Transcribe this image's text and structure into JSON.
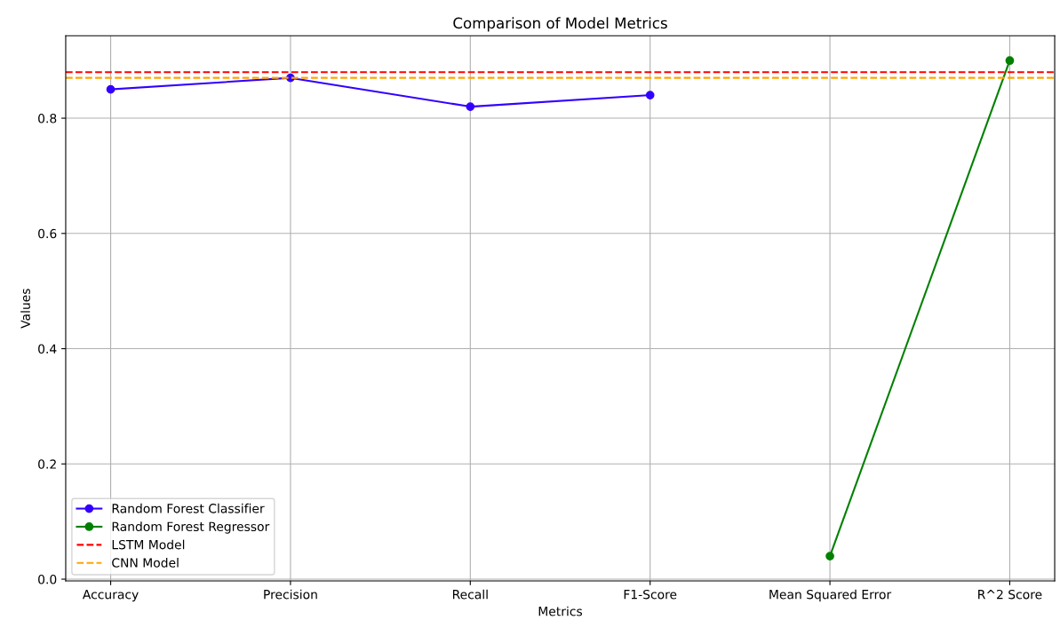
{
  "chart_data": {
    "type": "line",
    "title": "Comparison of Model Metrics",
    "xlabel": "Metrics",
    "ylabel": "Values",
    "categories": [
      "Accuracy",
      "Precision",
      "Recall",
      "F1-Score",
      "Mean Squared Error",
      "R^2 Score"
    ],
    "series": [
      {
        "name": "Random Forest Classifier",
        "color": "#3300ff",
        "values": [
          0.85,
          0.87,
          0.82,
          0.84,
          null,
          null
        ]
      },
      {
        "name": "Random Forest Regressor",
        "color": "#008000",
        "values": [
          null,
          null,
          null,
          null,
          0.04,
          0.9
        ]
      }
    ],
    "ref_lines": [
      {
        "axis": "y",
        "value": 0.88,
        "label": "LSTM Model",
        "color": "#ff0000",
        "line_style": "dashed"
      },
      {
        "axis": "y",
        "value": 0.87,
        "label": "CNN Model",
        "color": "#ffa500",
        "line_style": "dashed"
      }
    ],
    "ylim": [
      -0.003,
      0.943
    ],
    "yticks": [
      {
        "value": 0,
        "label": "0.0"
      },
      {
        "value": 0.2,
        "label": "0.2"
      },
      {
        "value": 0.4,
        "label": "0.4"
      },
      {
        "value": 0.6,
        "label": "0.6"
      },
      {
        "value": 0.8,
        "label": "0.8"
      }
    ],
    "grid": true,
    "legend": "lower left",
    "marker": "circle",
    "line_style": "solid"
  }
}
